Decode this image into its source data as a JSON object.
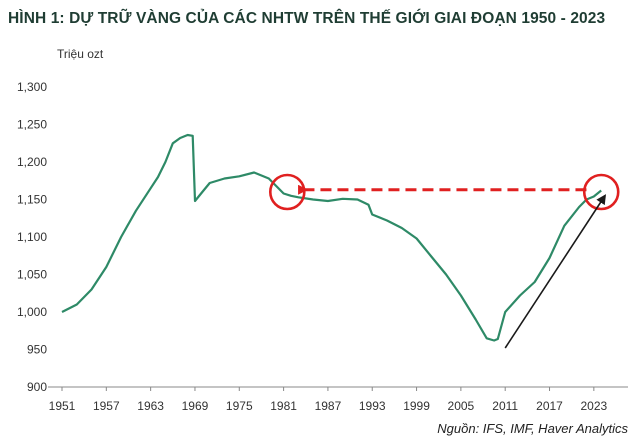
{
  "title": "HÌNH 1: DỰ TRỮ VÀNG CỦA CÁC NHTW TRÊN THẾ GIỚI GIAI ĐOẠN 1950 - 2023",
  "source": "Nguồn: IFS, IMF, Haver Analytics",
  "colors": {
    "line": "#2e8a67",
    "highlight": "#e02020",
    "arrow": "#1a1a1a",
    "title": "#1f3d33"
  },
  "chart_data": {
    "type": "line",
    "title": "HÌNH 1: DỰ TRỮ VÀNG CỦA CÁC NHTW TRÊN THẾ GIỚI GIAI ĐOẠN 1950 - 2023",
    "ylabel": "Triệu ozt",
    "xlabel": "",
    "xlim": [
      1951,
      2026
    ],
    "ylim": [
      900,
      1300
    ],
    "x_ticks": [
      "1951",
      "1957",
      "1963",
      "1969",
      "1975",
      "1981",
      "1987",
      "1993",
      "1999",
      "2005",
      "2011",
      "2017",
      "2023"
    ],
    "y_ticks": [
      "900",
      "950",
      "1,000",
      "1,050",
      "1,100",
      "1,150",
      "1,200",
      "1,250",
      "1,300"
    ],
    "grid": false,
    "series": [
      {
        "x": [
          1951,
          1953,
          1955,
          1957,
          1959,
          1961,
          1963,
          1964,
          1965,
          1966,
          1967,
          1968,
          1968.7,
          1969,
          1970,
          1971,
          1973,
          1975,
          1977,
          1979,
          1980,
          1981,
          1982,
          1983,
          1985,
          1987,
          1989,
          1991,
          1992.5,
          1993,
          1995,
          1997,
          1999,
          2001,
          2003,
          2005,
          2007,
          2008.5,
          2009.5,
          2010,
          2011,
          2013,
          2015,
          2017,
          2019,
          2021,
          2022,
          2023,
          2024
        ],
        "y": [
          1000,
          1010,
          1030,
          1060,
          1100,
          1135,
          1165,
          1180,
          1200,
          1225,
          1232,
          1236,
          1235,
          1148,
          1160,
          1172,
          1178,
          1181,
          1186,
          1178,
          1168,
          1158,
          1155,
          1153,
          1150,
          1148,
          1151,
          1150,
          1143,
          1130,
          1122,
          1112,
          1098,
          1074,
          1050,
          1022,
          990,
          965,
          962,
          964,
          1000,
          1022,
          1040,
          1072,
          1115,
          1140,
          1150,
          1154,
          1162
        ]
      }
    ],
    "annotations": [
      {
        "type": "circle",
        "x": 1981.5,
        "y": 1160
      },
      {
        "type": "circle",
        "x": 2024,
        "y": 1160
      },
      {
        "type": "dashed-arrow",
        "from": [
          2022,
          1163
        ],
        "to": [
          1983.5,
          1163
        ]
      },
      {
        "type": "arrow",
        "from": [
          2011,
          952
        ],
        "to": [
          2024.5,
          1155
        ]
      }
    ]
  }
}
